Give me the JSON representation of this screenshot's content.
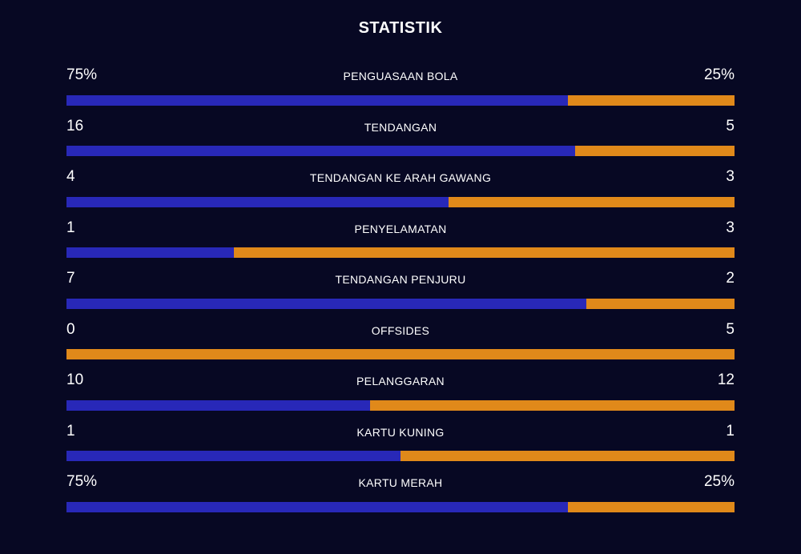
{
  "title": "STATISTIK",
  "colors": {
    "home": "#2828b8",
    "away": "#e0891a",
    "background": "#070823"
  },
  "stats": [
    {
      "label": "PENGUASAAN BOLA",
      "home": "75%",
      "away": "25%",
      "home_share": 0.75
    },
    {
      "label": "TENDANGAN",
      "home": "16",
      "away": "5",
      "home_share": 0.7619
    },
    {
      "label": "TENDANGAN KE ARAH GAWANG",
      "home": "4",
      "away": "3",
      "home_share": 0.5714
    },
    {
      "label": "PENYELAMATAN",
      "home": "1",
      "away": "3",
      "home_share": 0.25
    },
    {
      "label": "TENDANGAN PENJURU",
      "home": "7",
      "away": "2",
      "home_share": 0.7778
    },
    {
      "label": "OFFSIDES",
      "home": "0",
      "away": "5",
      "home_share": 0
    },
    {
      "label": "PELANGGARAN",
      "home": "10",
      "away": "12",
      "home_share": 0.4545
    },
    {
      "label": "KARTU KUNING",
      "home": "1",
      "away": "1",
      "home_share": 0.5
    },
    {
      "label": "KARTU MERAH",
      "home": "75%",
      "away": "25%",
      "home_share": 0.75
    }
  ]
}
